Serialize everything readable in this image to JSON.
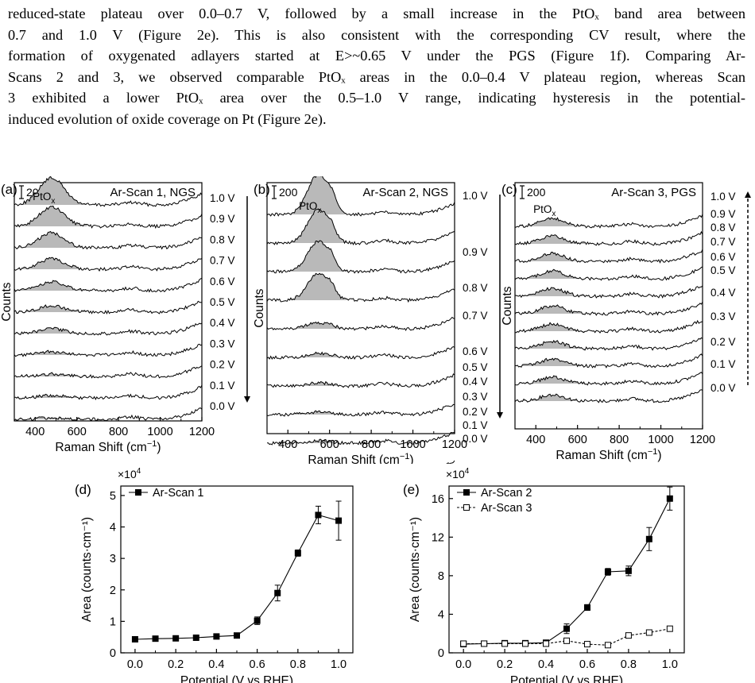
{
  "paragraph": {
    "lines": [
      "reduced-state plateau over 0.0–0.7 V, followed by a small increase in the PtOₓ band area between",
      "0.7 and 1.0 V (Figure 2e). This is also consistent with the corresponding CV result, where the",
      "formation of oxygenated adlayers started at E>~0.65 V under the PGS (Figure 1f). Comparing Ar-",
      "Scans 2 and 3, we observed comparable PtOₓ areas in the 0.0–0.4 V plateau region, whereas Scan",
      "3 exhibited a lower PtOₓ area over the 0.5–1.0 V range, indicating hysteresis in the potential-",
      "induced evolution of oxide coverage on Pt (Figure 2e)."
    ]
  },
  "panels": {
    "a": {
      "letter": "(a)",
      "scalebar": "200",
      "title": "Ar-Scan 1, NGS",
      "band": "PtO",
      "band_sub": "x",
      "ylabel": "Counts",
      "xlabel": "Raman Shift (cm",
      "xlabel_sup": "−1",
      "xlabel_end": ")",
      "xticks": [
        "400",
        "600",
        "800",
        "1000",
        "1200"
      ],
      "potentials": [
        "1.0 V",
        "0.9 V",
        "0.8 V",
        "0.7 V",
        "0.6 V",
        "0.5 V",
        "0.4 V",
        "0.3 V",
        "0.2 V",
        "0.1 V",
        "0.0 V"
      ],
      "arrow": "down-solid"
    },
    "b": {
      "letter": "(b)",
      "scalebar": "200",
      "title": "Ar-Scan 2, NGS",
      "band": "PtO",
      "band_sub": "x",
      "ylabel": "Counts",
      "xlabel": "Raman Shift (cm",
      "xlabel_sup": "−1",
      "xlabel_end": ")",
      "xticks": [
        "400",
        "600",
        "800",
        "1000",
        "1200"
      ],
      "potentials": [
        "1.0 V",
        "0.9 V",
        "0.8 V",
        "0.7 V",
        "0.6 V",
        "0.5 V",
        "0.4 V",
        "0.3 V",
        "0.2 V",
        "0.1 V",
        "0.0 V"
      ],
      "arrow": "down-solid"
    },
    "c": {
      "letter": "(c)",
      "scalebar": "200",
      "title": "Ar-Scan 3, PGS",
      "band": "PtO",
      "band_sub": "x",
      "ylabel": "Counts",
      "xlabel": "Raman Shift (cm",
      "xlabel_sup": "−1",
      "xlabel_end": ")",
      "xticks": [
        "400",
        "600",
        "800",
        "1000",
        "1200"
      ],
      "potentials": [
        "1.0 V",
        "0.9 V",
        "0.8 V",
        "0.7 V",
        "0.6 V",
        "0.5 V",
        "0.4 V",
        "0.3 V",
        "0.2 V",
        "0.1 V",
        "0.0 V"
      ],
      "arrow": "up-dashed"
    }
  },
  "chart_data": [
    {
      "panel": "d",
      "letter": "(d)",
      "type": "line",
      "ylabel": "Area (counts·cm⁻¹)",
      "xlabel": "Potential (V vs RHE)",
      "multiplier": "×10",
      "multiplier_exp": "4",
      "xlim": [
        -0.07,
        1.07
      ],
      "ylim": [
        0,
        5.3
      ],
      "xticks": [
        0.0,
        0.2,
        0.4,
        0.6,
        0.8,
        1.0
      ],
      "xtick_labels": [
        "0.0",
        "0.2",
        "0.4",
        "0.6",
        "0.8",
        "1.0"
      ],
      "yticks": [
        0,
        1,
        2,
        3,
        4,
        5
      ],
      "ytick_labels": [
        "0",
        "1",
        "2",
        "3",
        "4",
        "5"
      ],
      "x": [
        0.0,
        0.1,
        0.2,
        0.3,
        0.4,
        0.5,
        0.6,
        0.7,
        0.8,
        0.9,
        1.0
      ],
      "series": [
        {
          "name": "Ar-Scan 1",
          "marker": "filled-square",
          "line": "solid",
          "values": [
            0.43,
            0.45,
            0.46,
            0.48,
            0.52,
            0.55,
            1.02,
            1.9,
            3.17,
            4.38,
            4.2
          ],
          "errors": [
            0.03,
            0.03,
            0.03,
            0.03,
            0.03,
            0.03,
            0.12,
            0.25,
            0.1,
            0.28,
            0.62
          ]
        }
      ]
    },
    {
      "panel": "e",
      "letter": "(e)",
      "type": "line",
      "ylabel": "Area (counts·cm⁻¹)",
      "xlabel": "Potential (V vs RHE)",
      "multiplier": "×10",
      "multiplier_exp": "4",
      "xlim": [
        -0.07,
        1.07
      ],
      "ylim": [
        0,
        17.3
      ],
      "xticks": [
        0.0,
        0.2,
        0.4,
        0.6,
        0.8,
        1.0
      ],
      "xtick_labels": [
        "0.0",
        "0.2",
        "0.4",
        "0.6",
        "0.8",
        "1.0"
      ],
      "yticks": [
        0,
        4,
        8,
        12,
        16
      ],
      "ytick_labels": [
        "0",
        "4",
        "8",
        "12",
        "16"
      ],
      "x": [
        0.0,
        0.1,
        0.2,
        0.3,
        0.4,
        0.5,
        0.6,
        0.7,
        0.8,
        0.9,
        1.0
      ],
      "series": [
        {
          "name": "Ar-Scan 2",
          "marker": "filled-square",
          "line": "solid",
          "values": [
            0.9,
            0.95,
            1.0,
            1.0,
            1.05,
            2.5,
            4.7,
            8.4,
            8.5,
            11.8,
            16.0
          ],
          "errors": [
            0.1,
            0.1,
            0.1,
            0.1,
            0.1,
            0.5,
            0.3,
            0.35,
            0.5,
            1.2,
            1.2
          ]
        },
        {
          "name": "Ar-Scan 3",
          "marker": "open-square",
          "line": "dashed",
          "values": [
            0.95,
            0.95,
            0.95,
            0.95,
            0.95,
            1.25,
            0.9,
            0.8,
            1.8,
            2.1,
            2.5
          ],
          "errors": [
            0.1,
            0.1,
            0.1,
            0.1,
            0.1,
            0.1,
            0.1,
            0.1,
            0.15,
            0.15,
            0.15
          ]
        }
      ]
    }
  ]
}
